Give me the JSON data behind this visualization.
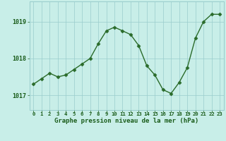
{
  "x": [
    0,
    1,
    2,
    3,
    4,
    5,
    6,
    7,
    8,
    9,
    10,
    11,
    12,
    13,
    14,
    15,
    16,
    17,
    18,
    19,
    20,
    21,
    22,
    23
  ],
  "y": [
    1017.3,
    1017.45,
    1017.6,
    1017.5,
    1017.55,
    1017.7,
    1017.85,
    1018.0,
    1018.4,
    1018.75,
    1018.85,
    1018.75,
    1018.65,
    1018.35,
    1017.8,
    1017.55,
    1017.15,
    1017.05,
    1017.35,
    1017.75,
    1018.55,
    1019.0,
    1019.2,
    1019.2
  ],
  "xlabel": "Graphe pression niveau de la mer (hPa)",
  "ylim": [
    1016.6,
    1019.55
  ],
  "yticks": [
    1017,
    1018,
    1019
  ],
  "xtick_labels": [
    "0",
    "1",
    "2",
    "3",
    "4",
    "5",
    "6",
    "7",
    "8",
    "9",
    "10",
    "11",
    "12",
    "13",
    "14",
    "15",
    "16",
    "17",
    "18",
    "19",
    "20",
    "21",
    "22",
    "23"
  ],
  "line_color": "#2a6b2a",
  "marker_color": "#2a6b2a",
  "bg_color": "#c8eee8",
  "grid_color": "#99cccc",
  "bottom_bar_color": "#2a6b2a",
  "label_color": "#1a5c1a",
  "tick_label_color": "#1a5c1a"
}
